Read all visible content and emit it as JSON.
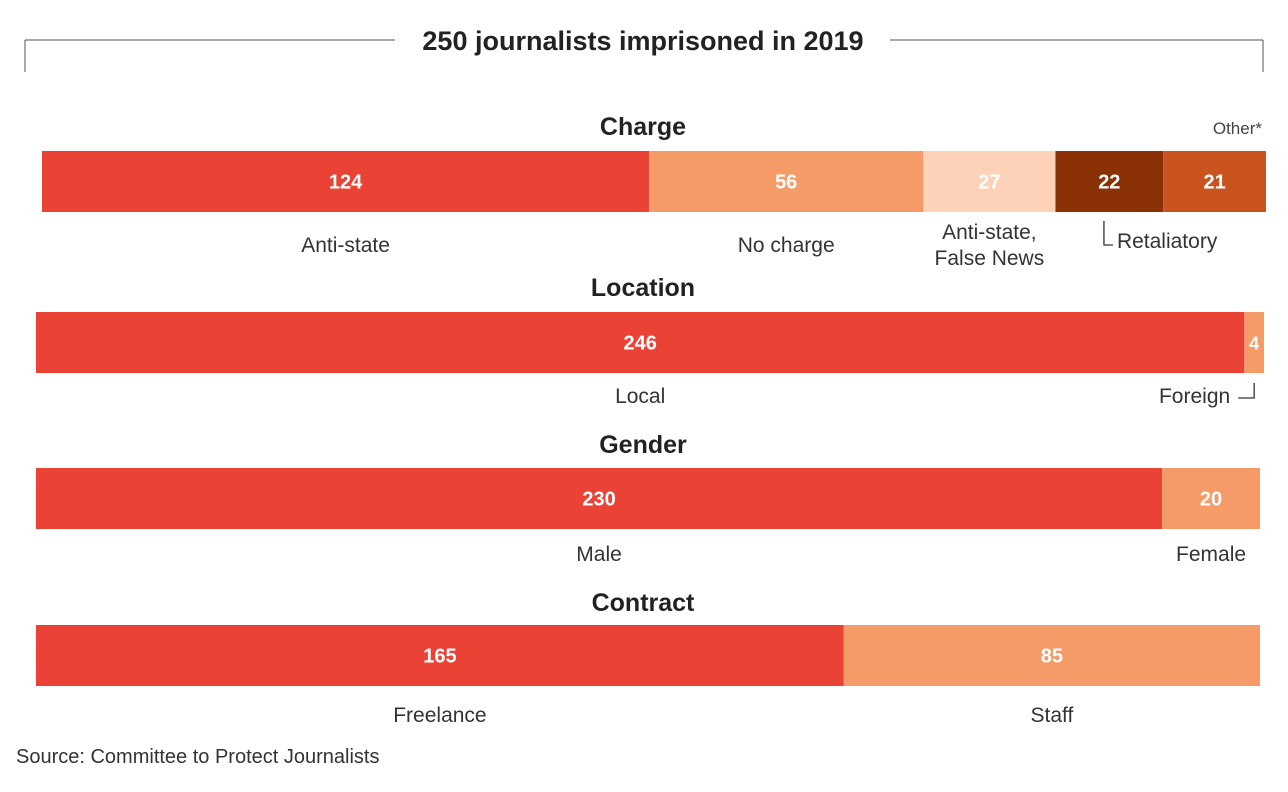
{
  "chart_data": {
    "type": "bar",
    "stacked": true,
    "orientation": "horizontal",
    "title": "250 journalists imprisoned in 2019",
    "source": "Source: Committee to Protect Journalists",
    "total": 250,
    "colors": {
      "primary": "#ea4335",
      "secondary": "#f59b68",
      "light": "#fdd2b8",
      "dark": "#8a3106",
      "rust": "#c95420"
    },
    "groups": [
      {
        "name": "Charge",
        "note": "Other*",
        "segments": [
          {
            "label": "Anti-state",
            "value": 124,
            "color": "#ea4335"
          },
          {
            "label": "No charge",
            "value": 56,
            "color": "#f59b68"
          },
          {
            "label": "Anti-state, False News",
            "label_lines": [
              "Anti-state,",
              "False News"
            ],
            "value": 27,
            "color": "#fdd2b8"
          },
          {
            "label": "Retaliatory",
            "value": 22,
            "color": "#8a3106"
          },
          {
            "label": "",
            "value": 21,
            "color": "#c95420"
          }
        ]
      },
      {
        "name": "Location",
        "segments": [
          {
            "label": "Local",
            "value": 246,
            "color": "#ea4335"
          },
          {
            "label": "Foreign",
            "value": 4,
            "color": "#f59b68"
          }
        ]
      },
      {
        "name": "Gender",
        "segments": [
          {
            "label": "Male",
            "value": 230,
            "color": "#ea4335"
          },
          {
            "label": "Female",
            "value": 20,
            "color": "#f59b68"
          }
        ]
      },
      {
        "name": "Contract",
        "segments": [
          {
            "label": "Freelance",
            "value": 165,
            "color": "#ea4335"
          },
          {
            "label": "Staff",
            "value": 85,
            "color": "#f59b68"
          }
        ]
      }
    ]
  }
}
